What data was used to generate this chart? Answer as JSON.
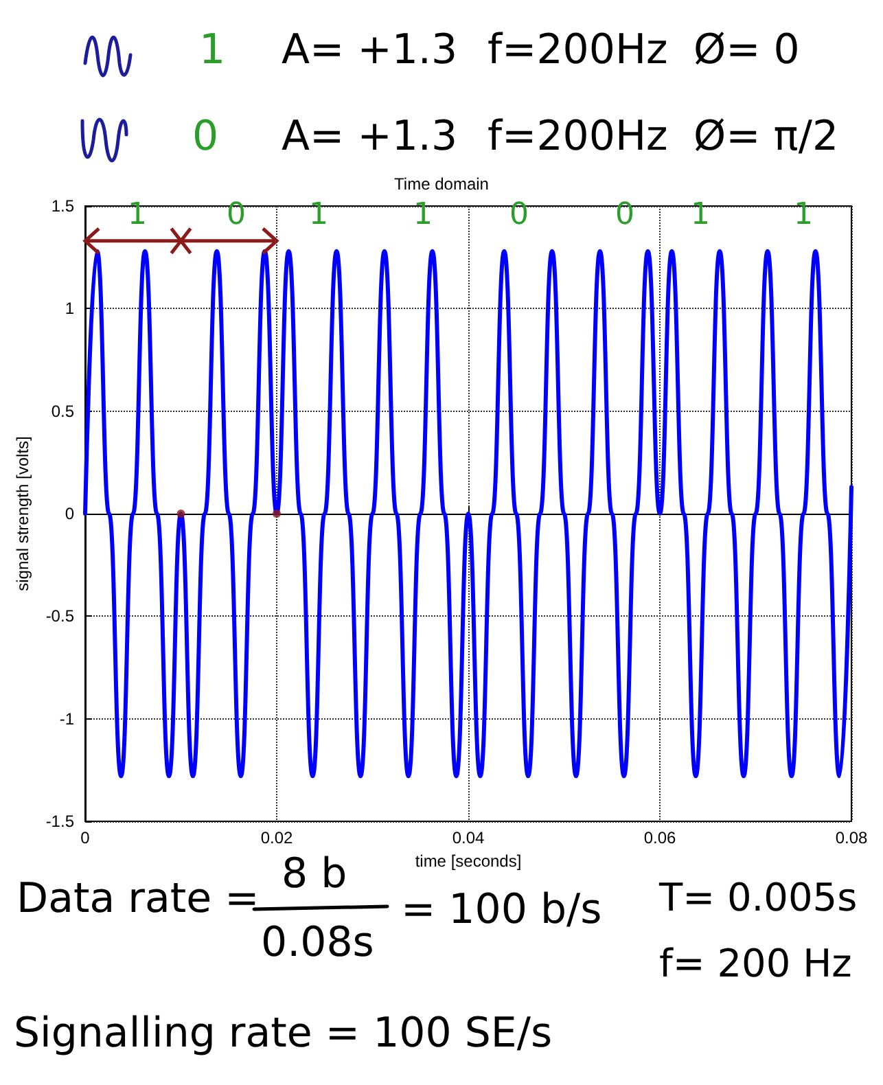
{
  "chart_data": {
    "type": "line",
    "title": "Time domain",
    "xlabel": "time [seconds]",
    "ylabel": "signal strength [volts]",
    "xlim": [
      0,
      0.08
    ],
    "xticks": [
      0,
      0.02,
      0.04,
      0.06,
      0.08
    ],
    "ylim": [
      -1.5,
      1.5
    ],
    "yticks": [
      -1.5,
      -1,
      -0.5,
      0,
      0.5,
      1,
      1.5
    ],
    "grid": true,
    "series": [
      {
        "color": "#0000ff",
        "x": [
          0,
          0.00125,
          0.0025,
          0.00375,
          0.005,
          0.00625,
          0.0075,
          0.00875,
          0.01,
          0.01125,
          0.0125,
          0.01375,
          0.015,
          0.01625,
          0.0175,
          0.01875,
          0.02,
          0.02125,
          0.0225,
          0.02375,
          0.025,
          0.02625,
          0.0275,
          0.02875,
          0.03,
          0.03125,
          0.0325,
          0.03375,
          0.035,
          0.03625,
          0.0375,
          0.03875,
          0.04,
          0.04125,
          0.0425,
          0.04375,
          0.045,
          0.04625,
          0.0475,
          0.04875,
          0.05,
          0.05125,
          0.0525,
          0.05375,
          0.055,
          0.05625,
          0.0575,
          0.05875,
          0.06,
          0.06125,
          0.0625,
          0.06375,
          0.065,
          0.06625,
          0.0675,
          0.06875,
          0.07,
          0.07125,
          0.0725,
          0.07375,
          0.075,
          0.07625,
          0.0775,
          0.07875,
          0.08
        ],
        "values": [
          0,
          1.28,
          0,
          -1.28,
          0,
          1.28,
          0,
          -1.28,
          0,
          -1.28,
          0,
          1.28,
          0,
          -1.28,
          0,
          1.28,
          0,
          1.28,
          0,
          -1.28,
          0,
          1.28,
          0,
          -1.28,
          0,
          1.28,
          0,
          -1.28,
          0,
          1.28,
          0,
          -1.28,
          0,
          -1.28,
          0,
          1.28,
          0,
          -1.28,
          0,
          1.28,
          0,
          -1.28,
          0,
          1.28,
          0,
          -1.28,
          0,
          1.28,
          0,
          1.28,
          0,
          -1.28,
          0,
          1.28,
          0,
          -1.28,
          0,
          1.28,
          0,
          -1.28,
          0,
          1.28,
          0,
          -1.28,
          0.13
        ]
      },
      {
        "type": "scatter",
        "color": "#8b1a1a",
        "x": [
          0.01,
          0.02
        ],
        "values": [
          0,
          0
        ]
      }
    ],
    "annotations": [
      "1",
      "A= +1.3",
      "f=200Hz",
      "Ø= 0",
      "0",
      "A= +1.3",
      "f=200Hz",
      "Ø= π/2",
      "1",
      "0",
      "1",
      "1",
      "0",
      "0",
      "1",
      "1",
      "Data rate =",
      "8 b",
      "0.08s",
      "= 100 b/s",
      "T= 0.005s",
      "f= 200 Hz",
      "Signalling rate = 100 SE/s"
    ]
  }
}
